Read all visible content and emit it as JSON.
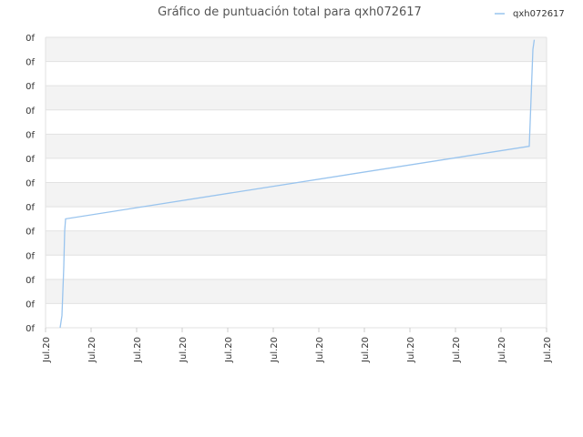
{
  "chart_data": {
    "type": "line",
    "title": "Gráfico de puntuación total para qxh072617",
    "xlabel": "",
    "ylabel": "",
    "y_tick_labels": [
      "0f",
      "0f",
      "0f",
      "0f",
      "0f",
      "0f",
      "0f",
      "0f",
      "0f",
      "0f",
      "0f",
      "0f",
      "0f"
    ],
    "x_tick_labels": [
      "Jul.20",
      "Jul.20",
      "Jul.20",
      "Jul.20",
      "Jul.20",
      "Jul.20",
      "Jul.20",
      "Jul.20",
      "Jul.20",
      "Jul.20",
      "Jul.20",
      "Jul.20"
    ],
    "xlim": [
      0,
      11
    ],
    "ylim": [
      0,
      12
    ],
    "grid": true,
    "legend_position": "top-right",
    "series": [
      {
        "name": "qxh072617",
        "color": "#99c4ee",
        "x": [
          0.32,
          0.36,
          0.38,
          0.4,
          0.42,
          0.44,
          10.62,
          10.64,
          10.67,
          10.7,
          10.73
        ],
        "y": [
          0.0,
          0.5,
          1.5,
          2.5,
          4.0,
          4.5,
          7.5,
          8.5,
          10.0,
          11.5,
          11.9
        ]
      }
    ]
  }
}
